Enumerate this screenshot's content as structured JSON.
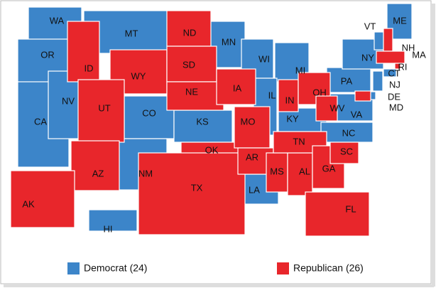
{
  "democrat": {
    "legend": "Democrat (24)",
    "color": "#3c85c9",
    "states": [
      "WA",
      "OR",
      "CA",
      "NV",
      "MT",
      "CO",
      "NM",
      "KS",
      "MN",
      "WI",
      "MI",
      "IL",
      "LA",
      "KY",
      "VA",
      "NC",
      "PA",
      "NY",
      "ME",
      "VT",
      "CT",
      "NJ",
      "DE",
      "HI"
    ]
  },
  "republican": {
    "legend": "Republican (26)",
    "color": "#e8262b",
    "states": [
      "ID",
      "WY",
      "UT",
      "AZ",
      "ND",
      "SD",
      "NE",
      "OK",
      "TX",
      "IA",
      "MO",
      "AR",
      "MS",
      "AL",
      "TN",
      "GA",
      "SC",
      "FL",
      "IN",
      "OH",
      "WV",
      "MD",
      "NH",
      "MA",
      "RI",
      "AK"
    ]
  }
}
